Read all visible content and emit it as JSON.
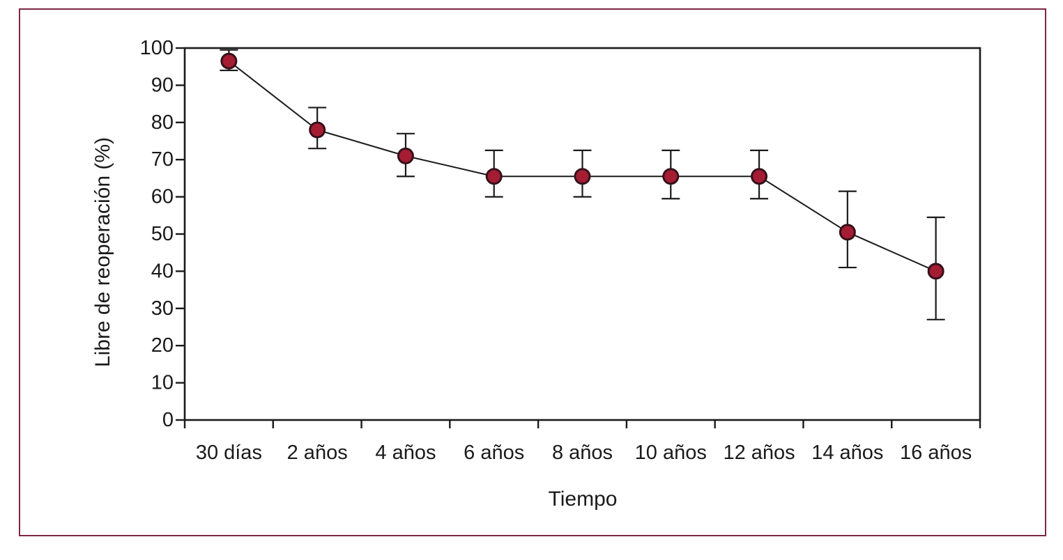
{
  "figure": {
    "border_color": "#7c2743",
    "background_color": "#ffffff"
  },
  "chart_data": {
    "type": "line",
    "title": "",
    "xlabel": "Tiempo",
    "ylabel": "Libre de reoperación (%)",
    "categories": [
      "30 días",
      "2 años",
      "4 años",
      "6 años",
      "8 años",
      "10 años",
      "12 años",
      "14 años",
      "16 años"
    ],
    "series": [
      {
        "name": "Libre de reoperación",
        "values": [
          96.5,
          78,
          71,
          65.5,
          65.5,
          65.5,
          65.5,
          50.5,
          40
        ],
        "error_high": [
          99.5,
          84,
          77,
          72.5,
          72.5,
          72.5,
          72.5,
          61.5,
          54.5
        ],
        "error_low": [
          94,
          73,
          65.5,
          60,
          60,
          59.5,
          59.5,
          41,
          27
        ]
      }
    ],
    "ylim": [
      0,
      100
    ],
    "yticks": [
      0,
      10,
      20,
      30,
      40,
      50,
      60,
      70,
      80,
      90,
      100
    ],
    "grid": false,
    "legend": "none",
    "marker_color": "#a51d33",
    "marker_outline": "#35101b",
    "line_color": "#1a1a1a",
    "axis_color": "#1a1a1a"
  }
}
